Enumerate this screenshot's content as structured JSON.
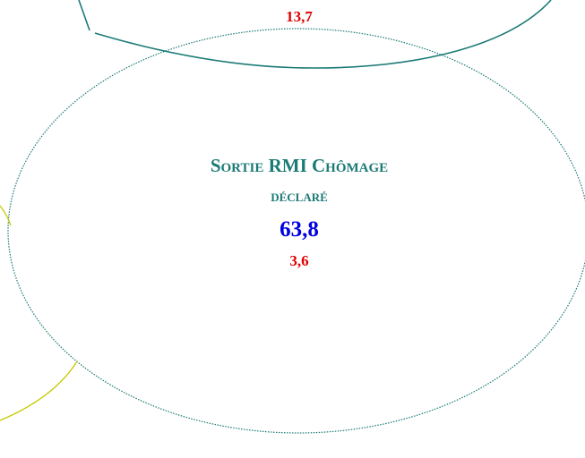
{
  "top_node": {
    "value": "13,7"
  },
  "center_node": {
    "label_line_1": "Sortie RMI Chômage",
    "label_line_2": "déclaré",
    "value": "63,8",
    "sub_value": "3,6"
  }
}
